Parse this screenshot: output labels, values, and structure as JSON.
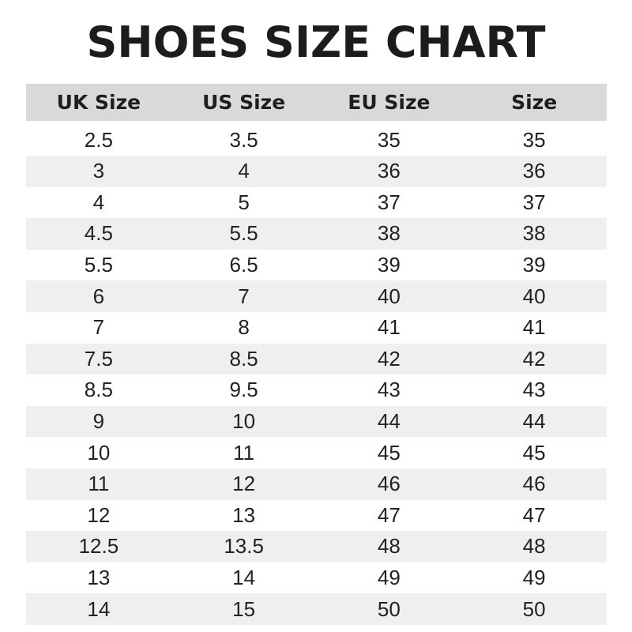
{
  "title": "SHOES SIZE CHART",
  "colors": {
    "header_bg": "#d9d9d9",
    "stripe_bg": "#efefef",
    "text": "#1a1a1a"
  },
  "table": {
    "headers": [
      "UK Size",
      "US Size",
      "EU Size",
      "Size"
    ],
    "rows": [
      [
        "2.5",
        "3.5",
        "35",
        "35"
      ],
      [
        "3",
        "4",
        "36",
        "36"
      ],
      [
        "4",
        "5",
        "37",
        "37"
      ],
      [
        "4.5",
        "5.5",
        "38",
        "38"
      ],
      [
        "5.5",
        "6.5",
        "39",
        "39"
      ],
      [
        "6",
        "7",
        "40",
        "40"
      ],
      [
        "7",
        "8",
        "41",
        "41"
      ],
      [
        "7.5",
        "8.5",
        "42",
        "42"
      ],
      [
        "8.5",
        "9.5",
        "43",
        "43"
      ],
      [
        "9",
        "10",
        "44",
        "44"
      ],
      [
        "10",
        "11",
        "45",
        "45"
      ],
      [
        "11",
        "12",
        "46",
        "46"
      ],
      [
        "12",
        "13",
        "47",
        "47"
      ],
      [
        "12.5",
        "13.5",
        "48",
        "48"
      ],
      [
        "13",
        "14",
        "49",
        "49"
      ],
      [
        "14",
        "15",
        "50",
        "50"
      ]
    ]
  }
}
